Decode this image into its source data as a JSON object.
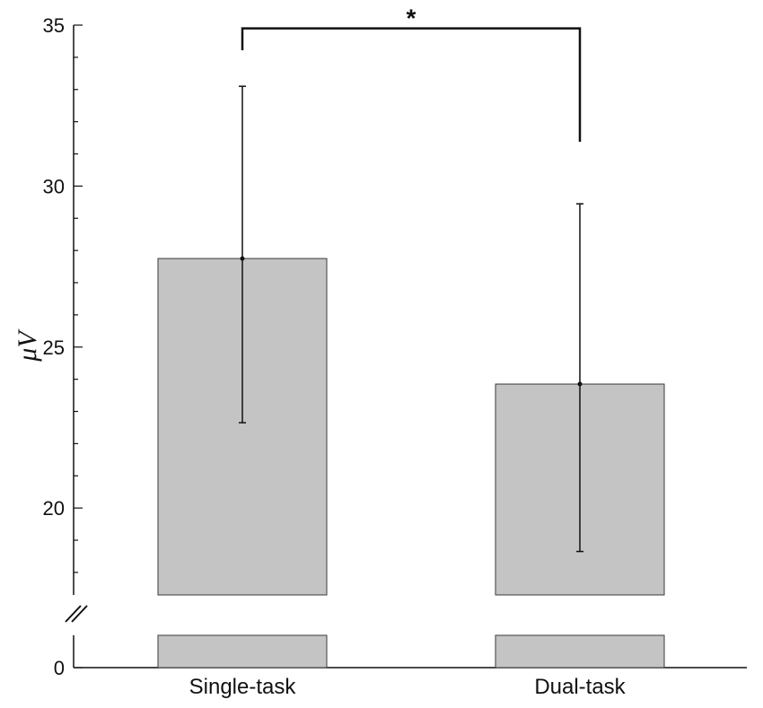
{
  "chart_data": {
    "type": "bar",
    "title": "",
    "xlabel": "",
    "ylabel": "μV",
    "ylim": [
      0,
      35
    ],
    "axis_break": true,
    "break_range": [
      0,
      17.3
    ],
    "major_ticks": [
      0,
      20,
      25,
      30,
      35
    ],
    "categories": [
      "Single-task",
      "Dual-task"
    ],
    "series": [
      {
        "values": [
          27.75,
          23.85
        ],
        "error_low": [
          22.65,
          18.65
        ],
        "error_high": [
          33.1,
          29.45
        ]
      }
    ],
    "significance": {
      "label": "*",
      "between": [
        "Single-task",
        "Dual-task"
      ],
      "y": 34.9
    },
    "grid": false,
    "legend": "none",
    "colors": {
      "bar_fill": "#c4c4c4",
      "bar_edge": "#3a3a3a",
      "axis": "#111111"
    }
  }
}
